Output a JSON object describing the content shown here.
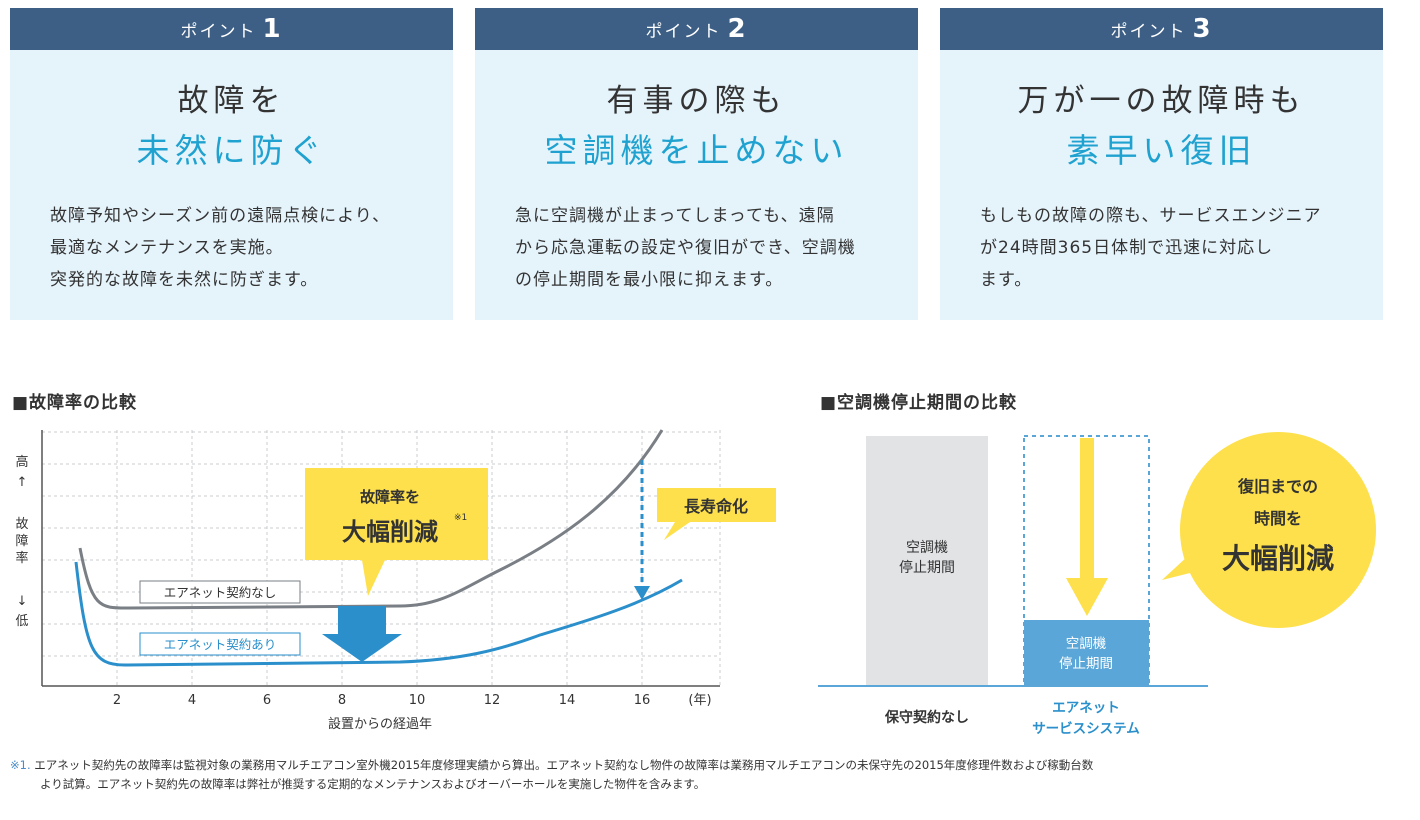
{
  "points": [
    {
      "head_label": "ポイント",
      "head_num": "1",
      "title_line1": "故障を",
      "title_line2": "未然に防ぐ",
      "body": [
        "故障予知やシーズン前の遠隔点検により、",
        "最適なメンテナンスを実施。",
        "突発的な故障を未然に防ぎます。"
      ]
    },
    {
      "head_label": "ポイント",
      "head_num": "2",
      "title_line1": "有事の際も",
      "title_line2": "空調機を止めない",
      "body": [
        "急に空調機が止まってしまっても、遠隔",
        "から応急運転の設定や復旧ができ、空調機",
        "の停止期間を最小限に抑えます。"
      ]
    },
    {
      "head_label": "ポイント",
      "head_num": "3",
      "title_line1": "万が一の故障時も",
      "title_line2": "素早い復旧",
      "body": [
        "もしもの故障の際も、サービスエンジニア",
        "が24時間365日体制で迅速に対応し",
        "ます。"
      ]
    }
  ],
  "left_chart": {
    "title": "■故障率の比較",
    "y_high": "高",
    "y_arrow_up": "↑",
    "y_label": [
      "故",
      "障",
      "率"
    ],
    "y_arrow_down": "↓",
    "y_low": "低",
    "x_ticks": [
      "2",
      "4",
      "6",
      "8",
      "10",
      "12",
      "14",
      "16"
    ],
    "x_unit": "(年)",
    "x_label": "設置からの経過年",
    "label_without": "エアネット契約なし",
    "label_with": "エアネット契約あり",
    "callout_line1": "故障率を",
    "callout_line2": "大幅削減",
    "callout_note": "※1",
    "longevity_label": "長寿命化"
  },
  "right_chart": {
    "title": "■空調機停止期間の比較",
    "bar1_line1": "空調機",
    "bar1_line2": "停止期間",
    "bar2_line1": "空調機",
    "bar2_line2": "停止期間",
    "x_label1": "保守契約なし",
    "x_label2_line1": "エアネット",
    "x_label2_line2": "サービスシステム",
    "bubble_line1": "復旧までの",
    "bubble_line2": "時間を",
    "bubble_line3": "大幅削減"
  },
  "footnote": {
    "mark": "※1.",
    "line1": "エアネット契約先の故障率は監視対象の業務用マルチエアコン室外機2015年度修理実績から算出。エアネット契約なし物件の故障率は業務用マルチエアコンの未保守先の2015年度修理件数および稼動台数",
    "line2": "より試算。エアネット契約先の故障率は弊社が推奨する定期的なメンテナンスおよびオーバーホールを実施した物件を含みます。"
  },
  "colors": {
    "navy": "#3e5f85",
    "accent": "#1fa2cf",
    "card_bg": "#e5f3fb",
    "yellow": "#fde04b",
    "blue_line": "#2a8fcb",
    "gray_line": "#7a7f85",
    "bar_gray": "#e1e3e5",
    "bar_blue": "#5aa6d8"
  }
}
